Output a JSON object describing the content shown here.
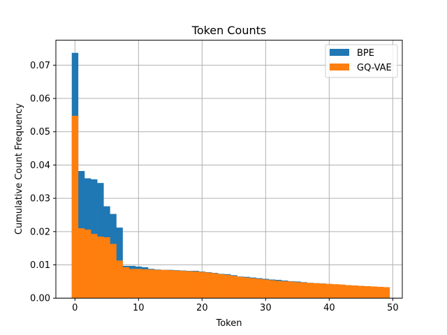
{
  "chart_data": {
    "type": "bar",
    "title": "Token Counts",
    "xlabel": "Token",
    "ylabel": "Cumulative Count Frequency",
    "xlim": [
      -3,
      51.5
    ],
    "ylim": [
      0,
      0.0775
    ],
    "grid": true,
    "legend_position": "top-right",
    "x": [
      0,
      1,
      2,
      3,
      4,
      5,
      6,
      7,
      8,
      9,
      10,
      11,
      12,
      13,
      14,
      15,
      16,
      17,
      18,
      19,
      20,
      21,
      22,
      23,
      24,
      25,
      26,
      27,
      28,
      29,
      30,
      31,
      32,
      33,
      34,
      35,
      36,
      37,
      38,
      39,
      40,
      41,
      42,
      43,
      44,
      45,
      46,
      47,
      48,
      49
    ],
    "x_ticks": [
      0,
      10,
      20,
      30,
      40,
      50
    ],
    "x_tick_labels": [
      "0",
      "10",
      "20",
      "30",
      "40",
      "50"
    ],
    "y_ticks": [
      0,
      0.01,
      0.02,
      0.03,
      0.04,
      0.05,
      0.06,
      0.07
    ],
    "y_tick_labels": [
      "0.00",
      "0.01",
      "0.02",
      "0.03",
      "0.04",
      "0.05",
      "0.06",
      "0.07"
    ],
    "series": [
      {
        "name": "BPE",
        "color": "#1f77b4",
        "values": [
          0.0737,
          0.0382,
          0.036,
          0.0357,
          0.0346,
          0.0276,
          0.0253,
          0.0212,
          0.0097,
          0.0097,
          0.0095,
          0.0093,
          0.0088,
          0.0086,
          0.0085,
          0.0085,
          0.0084,
          0.0083,
          0.0082,
          0.0082,
          0.008,
          0.0078,
          0.0076,
          0.0073,
          0.0072,
          0.0069,
          0.0065,
          0.0064,
          0.0062,
          0.006,
          0.0058,
          0.0056,
          0.0055,
          0.0053,
          0.0051,
          0.005,
          0.0048,
          0.0046,
          0.0045,
          0.0044,
          0.0042,
          0.0041,
          0.004,
          0.0039,
          0.0038,
          0.0037,
          0.0036,
          0.0035,
          0.0034,
          0.0033
        ]
      },
      {
        "name": "GQ-VAE",
        "color": "#ff7f0e",
        "values": [
          0.0548,
          0.021,
          0.0206,
          0.0193,
          0.0185,
          0.0183,
          0.0163,
          0.0113,
          0.0093,
          0.0088,
          0.0088,
          0.0087,
          0.0086,
          0.0085,
          0.0085,
          0.0084,
          0.0083,
          0.0082,
          0.0081,
          0.008,
          0.0079,
          0.0077,
          0.0075,
          0.0072,
          0.007,
          0.0067,
          0.0064,
          0.0062,
          0.006,
          0.0058,
          0.0056,
          0.0054,
          0.0052,
          0.0051,
          0.005,
          0.0048,
          0.0047,
          0.0046,
          0.0045,
          0.0044,
          0.0043,
          0.0042,
          0.0041,
          0.0039,
          0.0038,
          0.0037,
          0.0036,
          0.0035,
          0.0034,
          0.0033
        ]
      }
    ]
  }
}
